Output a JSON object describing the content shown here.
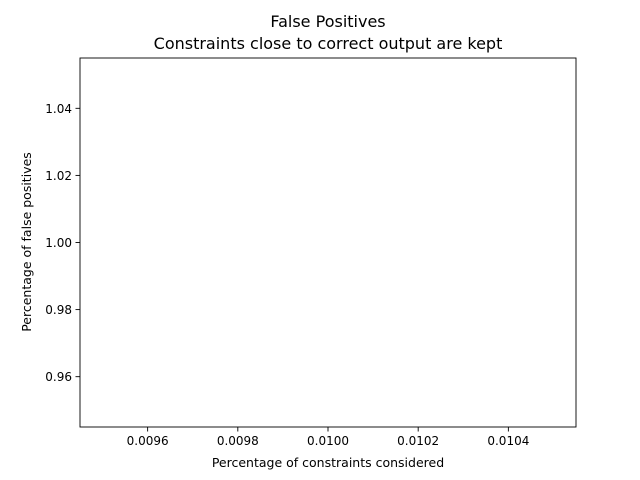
{
  "chart_data": {
    "type": "scatter",
    "title": "False Positives",
    "subtitle": "Constraints close to correct output are kept",
    "xlabel": "Percentage of constraints considered",
    "ylabel": "Percentage of false positives",
    "xlim": [
      0.00945,
      0.01055
    ],
    "ylim": [
      0.945,
      1.055
    ],
    "xticks": [
      0.0096,
      0.0098,
      0.01,
      0.0102,
      0.0104
    ],
    "xtick_labels": [
      "0.0096",
      "0.0098",
      "0.0100",
      "0.0102",
      "0.0104"
    ],
    "yticks": [
      0.96,
      0.98,
      1.0,
      1.02,
      1.04
    ],
    "ytick_labels": [
      "0.96",
      "0.98",
      "1.00",
      "1.02",
      "1.04"
    ],
    "series": [
      {
        "x": [],
        "y": []
      }
    ],
    "grid": false,
    "legend": "none",
    "colors": {
      "axes": "#000000",
      "background": "#ffffff"
    }
  }
}
